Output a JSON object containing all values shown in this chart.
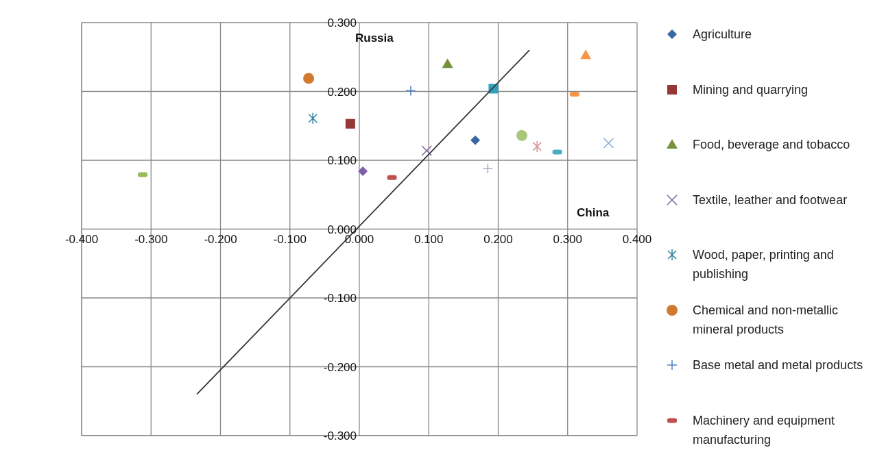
{
  "chart_data": {
    "type": "scatter",
    "xlabel": "China",
    "ylabel": "Russia",
    "xlim": [
      -0.4,
      0.4
    ],
    "ylim": [
      -0.3,
      0.3
    ],
    "xticks": [
      {
        "value": -0.4,
        "label": "-0.400"
      },
      {
        "value": -0.3,
        "label": "-0.300"
      },
      {
        "value": -0.2,
        "label": "-0.200"
      },
      {
        "value": -0.1,
        "label": "-0.100"
      },
      {
        "value": 0,
        "label": "0.000"
      },
      {
        "value": 0.1,
        "label": "0.100"
      },
      {
        "value": 0.2,
        "label": "0.200"
      },
      {
        "value": 0.3,
        "label": "0.300"
      },
      {
        "value": 0.4,
        "label": "0.400"
      }
    ],
    "yticks": [
      {
        "value": -0.3,
        "label": "-0.300"
      },
      {
        "value": -0.2,
        "label": "-0.200"
      },
      {
        "value": -0.1,
        "label": "-0.100"
      },
      {
        "value": 0,
        "label": "0.000"
      },
      {
        "value": 0.1,
        "label": "0.100"
      },
      {
        "value": 0.2,
        "label": "0.200"
      },
      {
        "value": 0.3,
        "label": "0.300"
      }
    ],
    "grid": true,
    "legend": "right",
    "series": [
      {
        "name": "Agriculture",
        "type": "scatter",
        "marker": "diamond",
        "color": "#3a67a3",
        "x": [
          0.167
        ],
        "values": [
          0.129
        ]
      },
      {
        "name": "Mining and quarrying",
        "type": "scatter",
        "marker": "square",
        "color": "#953735",
        "x": [
          -0.013
        ],
        "values": [
          0.153
        ]
      },
      {
        "name": "Food, beverage and tobacco",
        "type": "scatter",
        "marker": "triangle",
        "color": "#76923c",
        "x": [
          0.127
        ],
        "values": [
          0.24
        ]
      },
      {
        "name": "Textile, leather and footwear",
        "type": "scatter",
        "marker": "x",
        "color": "#8064a2",
        "x": [
          0.097
        ],
        "values": [
          0.114
        ]
      },
      {
        "name": "Wood, paper, printing and publishing",
        "type": "scatter",
        "marker": "cross",
        "color": "#31859c",
        "x": [
          -0.067
        ],
        "values": [
          0.161
        ]
      },
      {
        "name": "Chemical and non-metallic mineral products",
        "type": "scatter",
        "marker": "circle",
        "color": "#d17a2f",
        "x": [
          -0.073
        ],
        "values": [
          0.219
        ]
      },
      {
        "name": "Base metal and metal products",
        "type": "scatter",
        "marker": "plus",
        "color": "#4f81bd",
        "x": [
          0.074
        ],
        "values": [
          0.201
        ]
      },
      {
        "name": "Machinery and equipment manufacturing",
        "type": "scatter",
        "color": "#c0504d",
        "x": [
          0.047
        ],
        "values": [
          0.075
        ]
      },
      {
        "type": "scatter",
        "color": "#9bbb59",
        "x": [
          -0.312
        ],
        "values": [
          0.079
        ]
      },
      {
        "type": "scatter",
        "marker": "diamond",
        "color": "#7f5fa8",
        "x": [
          0.005
        ],
        "values": [
          0.084
        ]
      },
      {
        "type": "scatter",
        "marker": "square",
        "color": "#31a0c0",
        "x": [
          0.193
        ],
        "values": [
          0.204
        ]
      },
      {
        "type": "scatter",
        "marker": "triangle",
        "color": "#f79646",
        "x": [
          0.326
        ],
        "values": [
          0.253
        ]
      },
      {
        "type": "scatter",
        "marker": "x",
        "color": "#95b3d7",
        "x": [
          0.359
        ],
        "values": [
          0.125
        ]
      },
      {
        "type": "scatter",
        "marker": "cross",
        "color": "#d99694",
        "x": [
          0.256
        ],
        "values": [
          0.12
        ]
      },
      {
        "type": "scatter",
        "marker": "circle",
        "color": "#a9c77a",
        "x": [
          0.234
        ],
        "values": [
          0.136
        ]
      },
      {
        "type": "scatter",
        "marker": "plus",
        "color": "#b3a2c7",
        "x": [
          0.185
        ],
        "values": [
          0.088
        ]
      },
      {
        "type": "scatter",
        "color": "#4bacc6",
        "x": [
          0.285
        ],
        "values": [
          0.112
        ]
      },
      {
        "type": "scatter",
        "color": "#f79646",
        "x": [
          0.31
        ],
        "values": [
          0.196
        ]
      },
      {
        "type": "line",
        "color": "#333333",
        "x": [
          -0.234,
          0.245
        ],
        "values": [
          -0.24,
          0.26
        ]
      }
    ]
  }
}
